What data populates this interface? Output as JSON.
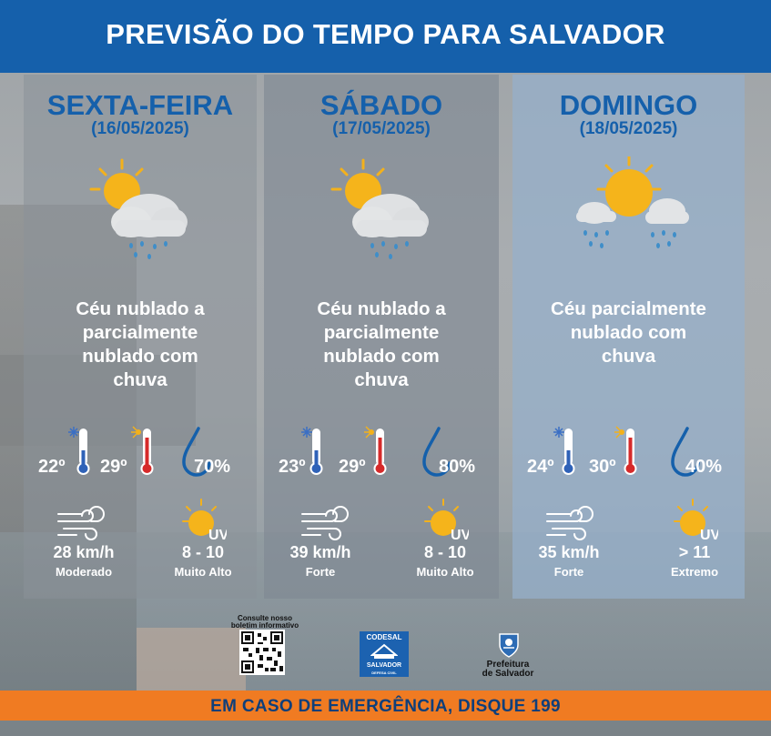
{
  "header": {
    "title": "PREVISÃO DO TEMPO PARA SALVADOR"
  },
  "days": [
    {
      "day": "SEXTA-FEIRA",
      "date": "(16/05/2025)",
      "condition_icon": "sun-cloud-rain-icon",
      "description_lines": [
        "Céu nublado a",
        "parcialmente",
        "nublado com",
        "chuva"
      ],
      "temp_min": "22º",
      "temp_max": "29º",
      "humidity": "70%",
      "wind_speed": "28 km/h",
      "wind_label": "Moderado",
      "uv_range": "8 - 10",
      "uv_label": "Muito Alto"
    },
    {
      "day": "SÁBADO",
      "date": "(17/05/2025)",
      "condition_icon": "sun-cloud-rain-icon",
      "description_lines": [
        "Céu nublado a",
        "parcialmente",
        "nublado com",
        "chuva"
      ],
      "temp_min": "23º",
      "temp_max": "29º",
      "humidity": "80%",
      "wind_speed": "39 km/h",
      "wind_label": "Forte",
      "uv_range": "8 - 10",
      "uv_label": "Muito Alto"
    },
    {
      "day": "DOMINGO",
      "date": "(18/05/2025)",
      "condition_icon": "sun-clouds-rain-icon",
      "description_lines": [
        "Céu parcialmente",
        "nublado com",
        "chuva"
      ],
      "temp_min": "24º",
      "temp_max": "30º",
      "humidity": "40%",
      "wind_speed": "35 km/h",
      "wind_label": "Forte",
      "uv_range": "> 11",
      "uv_label": "Extremo"
    }
  ],
  "uv_icon_text": "UV",
  "footer": {
    "qr_caption": "Consulte nosso boletim informativo",
    "codesal_top": "CODESAL",
    "codesal_name": "SALVADOR",
    "codesal_sub": "DEFESA CIVIL",
    "prefeitura_line1": "Prefeitura",
    "prefeitura_line2": "de Salvador"
  },
  "emergency": {
    "text": "EM CASO DE EMERGÊNCIA, DISQUE 199"
  },
  "colors": {
    "header_blue": "#1560ab",
    "emergency_orange": "#f07b22",
    "text_navy": "#0f3f7a"
  }
}
